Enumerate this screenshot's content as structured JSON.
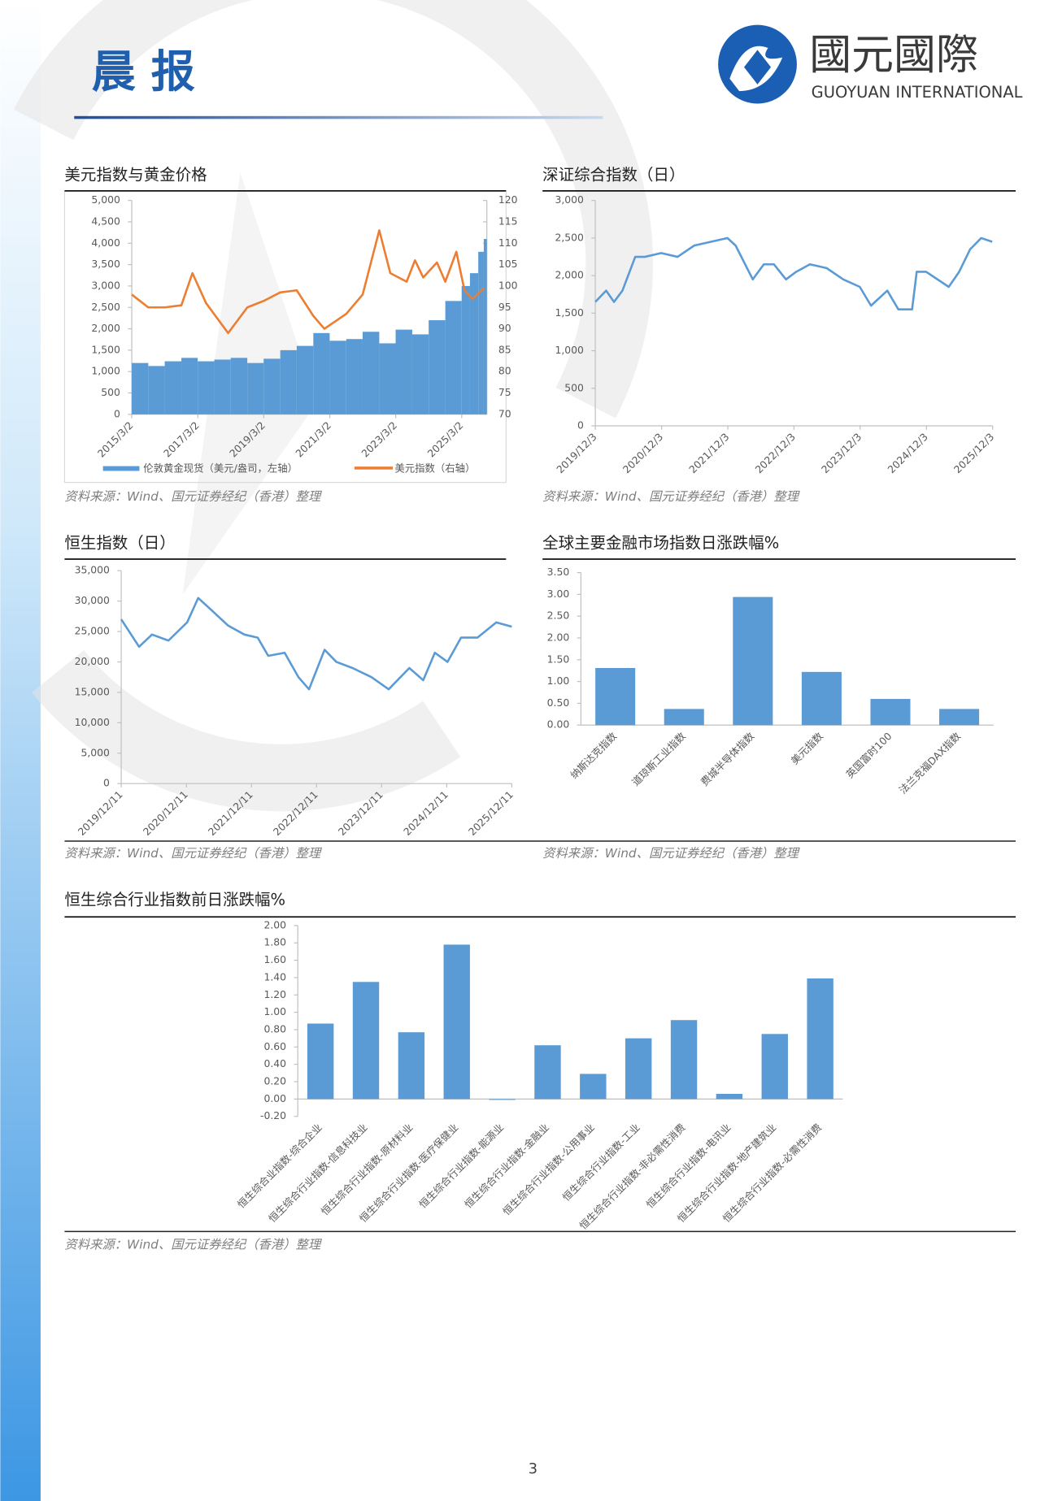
{
  "header": {
    "title": "晨 报",
    "logo_cn": "國元國際",
    "logo_en": "GUOYUAN INTERNATIONAL"
  },
  "chart_data": [
    {
      "type": "combo",
      "title": "美元指数与黄金价格",
      "xlim": [
        "2015/3/2",
        "2025/12/5"
      ],
      "xticks": [
        "2015/3/2",
        "2017/3/2",
        "2019/3/2",
        "2021/3/2",
        "2023/3/2",
        "2025/3/2"
      ],
      "ylim": [
        0,
        5000
      ],
      "yticks": [
        0,
        500,
        {
          "value": 1000,
          "label": "1,000"
        },
        {
          "value": 1500,
          "label": "1,500"
        },
        {
          "value": 2000,
          "label": "2,000"
        },
        {
          "value": 2500,
          "label": "2,500"
        },
        {
          "value": 3000,
          "label": "3,000"
        },
        {
          "value": 3500,
          "label": "3,500"
        },
        {
          "value": 4000,
          "label": "4,000"
        },
        {
          "value": 4500,
          "label": "4,500"
        },
        {
          "value": 5000,
          "label": "5,000"
        }
      ],
      "y2lim": [
        70,
        120
      ],
      "y2ticks": [
        70,
        75,
        80,
        85,
        90,
        95,
        100,
        105,
        110,
        115,
        120
      ],
      "legend": "bottom",
      "series": [
        {
          "name": "伦敦黄金现货（美元/盎司，左轴）",
          "color": "#5b9bd5",
          "kind": "bar",
          "x": [
            "2015/3/2",
            "2015/9/1",
            "2016/3/1",
            "2016/9/1",
            "2017/3/1",
            "2017/9/1",
            "2018/3/1",
            "2018/9/1",
            "2019/3/1",
            "2019/9/1",
            "2020/3/1",
            "2020/9/1",
            "2021/3/1",
            "2021/9/1",
            "2022/3/1",
            "2022/9/1",
            "2023/3/1",
            "2023/9/1",
            "2024/3/1",
            "2024/9/1",
            "2025/3/1",
            "2025/6/1",
            "2025/9/1",
            "2025/11/1"
          ],
          "values": [
            1200,
            1130,
            1240,
            1320,
            1240,
            1280,
            1320,
            1200,
            1300,
            1500,
            1600,
            1900,
            1720,
            1760,
            1930,
            1660,
            1980,
            1870,
            2200,
            2650,
            3000,
            3300,
            3800,
            4100
          ]
        },
        {
          "name": "美元指数（右轴）",
          "color": "#ed7d31",
          "kind": "line",
          "axis": "y2",
          "x": [
            "2015/3/2",
            "2015/9/1",
            "2016/3/1",
            "2016/9/1",
            "2017/1/1",
            "2017/6/1",
            "2018/2/1",
            "2018/9/1",
            "2019/3/1",
            "2019/9/1",
            "2020/3/1",
            "2020/9/1",
            "2021/1/1",
            "2021/9/1",
            "2022/3/1",
            "2022/9/1",
            "2023/1/1",
            "2023/7/1",
            "2023/10/1",
            "2024/1/1",
            "2024/6/1",
            "2024/9/1",
            "2025/1/1",
            "2025/4/1",
            "2025/7/1",
            "2025/11/1"
          ],
          "values": [
            98,
            95,
            95,
            95.5,
            103,
            96,
            89,
            95,
            96.5,
            98.5,
            99,
            93,
            90,
            93.5,
            98,
            113,
            103,
            101,
            106,
            102,
            105.5,
            101,
            108,
            99,
            97,
            99.5
          ]
        }
      ],
      "source": "资料来源：Wind、国元证券经纪（香港）整理"
    },
    {
      "type": "line",
      "title": "深证综合指数（日）",
      "xlim": [
        "2019/12/3",
        "2025/12/3"
      ],
      "xticks": [
        "2019/12/3",
        "2020/12/3",
        "2021/12/3",
        "2022/12/3",
        "2023/12/3",
        "2024/12/3",
        "2025/12/3"
      ],
      "ylim": [
        0,
        3000
      ],
      "yticks": [
        0,
        500,
        {
          "value": 1000,
          "label": "1,000"
        },
        {
          "value": 1500,
          "label": "1,500"
        },
        {
          "value": 2000,
          "label": "2,000"
        },
        {
          "value": 2500,
          "label": "2,500"
        },
        {
          "value": 3000,
          "label": "3,000"
        }
      ],
      "color": "#5b9bd5",
      "x": [
        "2019/12/3",
        "2020/2/1",
        "2020/3/15",
        "2020/5/1",
        "2020/7/10",
        "2020/9/1",
        "2020/12/1",
        "2021/3/1",
        "2021/6/1",
        "2021/9/1",
        "2021/12/1",
        "2022/1/15",
        "2022/4/20",
        "2022/6/20",
        "2022/8/15",
        "2022/10/20",
        "2022/12/15",
        "2023/3/1",
        "2023/6/1",
        "2023/9/1",
        "2023/12/1",
        "2024/2/1",
        "2024/5/1",
        "2024/7/1",
        "2024/9/15",
        "2024/10/10",
        "2024/12/1",
        "2025/4/5",
        "2025/6/1",
        "2025/8/1",
        "2025/10/1",
        "2025/12/1"
      ],
      "values": [
        1650,
        1800,
        1650,
        1800,
        2250,
        2250,
        2300,
        2250,
        2400,
        2450,
        2500,
        2400,
        1950,
        2150,
        2150,
        1950,
        2050,
        2150,
        2100,
        1950,
        1850,
        1600,
        1800,
        1550,
        1550,
        2050,
        2050,
        1850,
        2050,
        2350,
        2500,
        2450
      ],
      "source": "资料来源：Wind、国元证券经纪（香港）整理"
    },
    {
      "type": "line",
      "title": "恒生指数（日）",
      "xlim": [
        "2019/12/11",
        "2025/12/11"
      ],
      "xticks": [
        "2019/12/11",
        "2020/12/11",
        "2021/12/11",
        "2022/12/11",
        "2023/12/11",
        "2024/12/11",
        "2025/12/11"
      ],
      "ylim": [
        0,
        35000
      ],
      "yticks": [
        0,
        {
          "value": 5000,
          "label": "5,000"
        },
        {
          "value": 10000,
          "label": "10,000"
        },
        {
          "value": 15000,
          "label": "15,000"
        },
        {
          "value": 20000,
          "label": "20,000"
        },
        {
          "value": 25000,
          "label": "25,000"
        },
        {
          "value": 30000,
          "label": "30,000"
        },
        {
          "value": 35000,
          "label": "35,000"
        }
      ],
      "color": "#5b9bd5",
      "x": [
        "2019/12/11",
        "2020/3/20",
        "2020/6/1",
        "2020/9/1",
        "2020/12/15",
        "2021/2/15",
        "2021/5/1",
        "2021/8/1",
        "2021/11/1",
        "2022/1/15",
        "2022/3/15",
        "2022/6/15",
        "2022/9/1",
        "2022/10/30",
        "2023/1/25",
        "2023/4/1",
        "2023/7/1",
        "2023/10/15",
        "2024/1/20",
        "2024/5/15",
        "2024/8/1",
        "2024/10/5",
        "2024/12/15",
        "2025/3/1",
        "2025/6/1",
        "2025/9/15",
        "2025/12/11"
      ],
      "values": [
        27000,
        22500,
        24500,
        23500,
        26500,
        30500,
        28500,
        26000,
        24500,
        24000,
        21000,
        21500,
        17500,
        15500,
        22000,
        20000,
        19000,
        17500,
        15500,
        19000,
        17000,
        21500,
        20000,
        24000,
        24000,
        26500,
        25800
      ],
      "source": "资料来源：Wind、国元证券经纪（香港）整理"
    },
    {
      "type": "bar",
      "title": "全球主要金融市场指数日涨跌幅%",
      "categories": [
        "纳斯达克指数",
        "道琼斯工业指数",
        "费城半导体指数",
        "美元指数",
        "英国富时100",
        "法兰克福DAX指数"
      ],
      "values": [
        1.31,
        0.37,
        2.94,
        1.22,
        0.6,
        0.37
      ],
      "color": "#5b9bd5",
      "ylim": [
        0,
        3.5
      ],
      "yticks": [
        {
          "value": 0,
          "label": "0.00"
        },
        {
          "value": 0.5,
          "label": "0.50"
        },
        {
          "value": 1,
          "label": "1.00"
        },
        {
          "value": 1.5,
          "label": "1.50"
        },
        {
          "value": 2,
          "label": "2.00"
        },
        {
          "value": 2.5,
          "label": "2.50"
        },
        {
          "value": 3,
          "label": "3.00"
        },
        {
          "value": 3.5,
          "label": "3.50"
        }
      ],
      "source": "资料来源：Wind、国元证券经纪（香港）整理"
    },
    {
      "type": "bar",
      "title": "恒生综合行业指数前日涨跌幅%",
      "categories": [
        "恒生综合业指数-综合企业",
        "恒生综合行业指数-信息科技业",
        "恒生综合行业指数-原材料业",
        "恒生综合行业指数-医疗保健业",
        "恒生综合行业指数-能源业",
        "恒生综合行业指数-金融业",
        "恒生综合行业指数-公用事业",
        "恒生综合行业指数-工业",
        "恒生综合行业指数-非必需性消费",
        "恒生综合行业指数-电讯业",
        "恒生综合行业指数-地产建筑业",
        "恒生综合行业指数-必需性消费"
      ],
      "values": [
        0.87,
        1.35,
        0.77,
        1.78,
        -0.01,
        0.62,
        0.29,
        0.7,
        0.91,
        0.06,
        0.75,
        1.39
      ],
      "color": "#5b9bd5",
      "ylim": [
        -0.2,
        2
      ],
      "yticks": [
        {
          "value": -0.2,
          "label": "-0.20"
        },
        {
          "value": 0,
          "label": "0.00"
        },
        {
          "value": 0.2,
          "label": "0.20"
        },
        {
          "value": 0.4,
          "label": "0.40"
        },
        {
          "value": 0.6,
          "label": "0.60"
        },
        {
          "value": 0.8,
          "label": "0.80"
        },
        {
          "value": 1,
          "label": "1.00"
        },
        {
          "value": 1.2,
          "label": "1.20"
        },
        {
          "value": 1.4,
          "label": "1.40"
        },
        {
          "value": 1.6,
          "label": "1.60"
        },
        {
          "value": 1.8,
          "label": "1.80"
        },
        {
          "value": 2,
          "label": "2.00"
        }
      ],
      "source": "资料来源：Wind、国元证券经纪（香港）整理"
    }
  ],
  "page_number": "3"
}
